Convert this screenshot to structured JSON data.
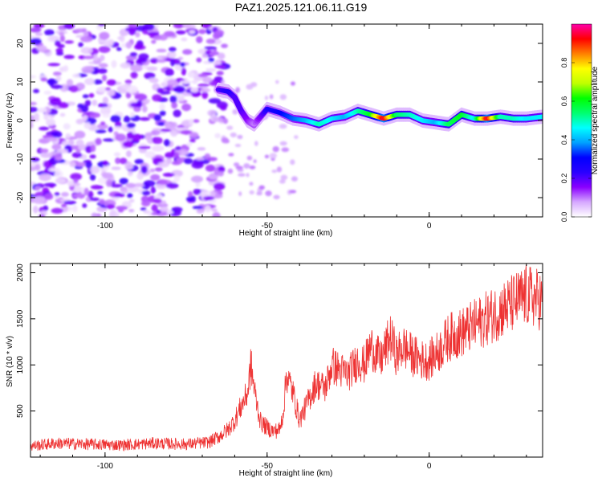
{
  "title": "PAZ1.2025.121.06.11.G19",
  "chart_data": [
    {
      "type": "heatmap",
      "title": "PAZ1.2025.121.06.11.G19",
      "xlabel": "Height of straight line (km)",
      "ylabel": "Frequency (Hz)",
      "xlim": [
        -123,
        35
      ],
      "ylim": [
        -25,
        25
      ],
      "x_ticks": [
        -100,
        -50,
        0
      ],
      "y_ticks": [
        -20,
        -10,
        0,
        10,
        20
      ],
      "noise_region_x": [
        -123,
        -63
      ],
      "ridge": {
        "x": [
          -65,
          -62,
          -60,
          -58,
          -56,
          -54,
          -50,
          -46,
          -42,
          -38,
          -34,
          -30,
          -26,
          -22,
          -18,
          -14,
          -10,
          -6,
          -2,
          2,
          6,
          10,
          14,
          18,
          22,
          26,
          30,
          35
        ],
        "frequency": [
          8,
          7.5,
          6,
          2.5,
          0,
          -1,
          3,
          2,
          0.5,
          0,
          -1,
          0.5,
          1,
          2.5,
          1.5,
          0.5,
          1.5,
          1.5,
          0,
          -0.5,
          -1,
          1.5,
          0.5,
          0.5,
          1,
          0.5,
          0.5,
          1
        ],
        "amplitude": [
          0.2,
          0.25,
          0.2,
          0.2,
          0.15,
          0.1,
          0.25,
          0.3,
          0.35,
          0.4,
          0.5,
          0.45,
          0.4,
          0.5,
          0.6,
          0.95,
          0.55,
          0.5,
          0.45,
          0.4,
          0.55,
          0.6,
          0.45,
          0.95,
          0.5,
          0.5,
          0.45,
          0.45
        ]
      },
      "colorbar": {
        "label": "Normalized spectral amplitude",
        "range": [
          0,
          1
        ],
        "ticks": [
          0.0,
          0.2,
          0.4,
          0.6,
          0.8
        ],
        "colors": [
          "#ffffff",
          "#d6a8ff",
          "#8a00ff",
          "#2a00ff",
          "#0000ff",
          "#00a0ff",
          "#00ffff",
          "#00ff70",
          "#00ff00",
          "#c0ff00",
          "#ffff00",
          "#ff8000",
          "#ff0000",
          "#ff00aa"
        ]
      }
    },
    {
      "type": "line",
      "xlabel": "Height of straight line (km)",
      "ylabel": "SNR (10 * v/v)",
      "xlim": [
        -123,
        35
      ],
      "ylim": [
        0,
        2100
      ],
      "x_ticks": [
        -100,
        -50,
        0
      ],
      "y_ticks": [
        500,
        1000,
        1500,
        2000
      ],
      "color": "#ee3333",
      "x": [
        -123,
        -115,
        -105,
        -95,
        -85,
        -75,
        -68,
        -65,
        -62,
        -60,
        -58,
        -56,
        -55,
        -54,
        -53,
        -52,
        -50,
        -48,
        -46,
        -45,
        -44,
        -42,
        -40,
        -38,
        -35,
        -32,
        -30,
        -28,
        -25,
        -22,
        -20,
        -18,
        -15,
        -12,
        -10,
        -8,
        -5,
        -2,
        0,
        3,
        6,
        10,
        15,
        20,
        25,
        30,
        35
      ],
      "y": [
        120,
        150,
        140,
        130,
        150,
        140,
        160,
        220,
        300,
        400,
        550,
        700,
        1000,
        750,
        550,
        380,
        320,
        280,
        300,
        500,
        900,
        700,
        400,
        550,
        800,
        750,
        1000,
        950,
        900,
        1050,
        1000,
        1200,
        1050,
        1300,
        1100,
        1200,
        1100,
        1050,
        1050,
        1150,
        1300,
        1350,
        1450,
        1550,
        1650,
        1750,
        1700
      ]
    }
  ]
}
